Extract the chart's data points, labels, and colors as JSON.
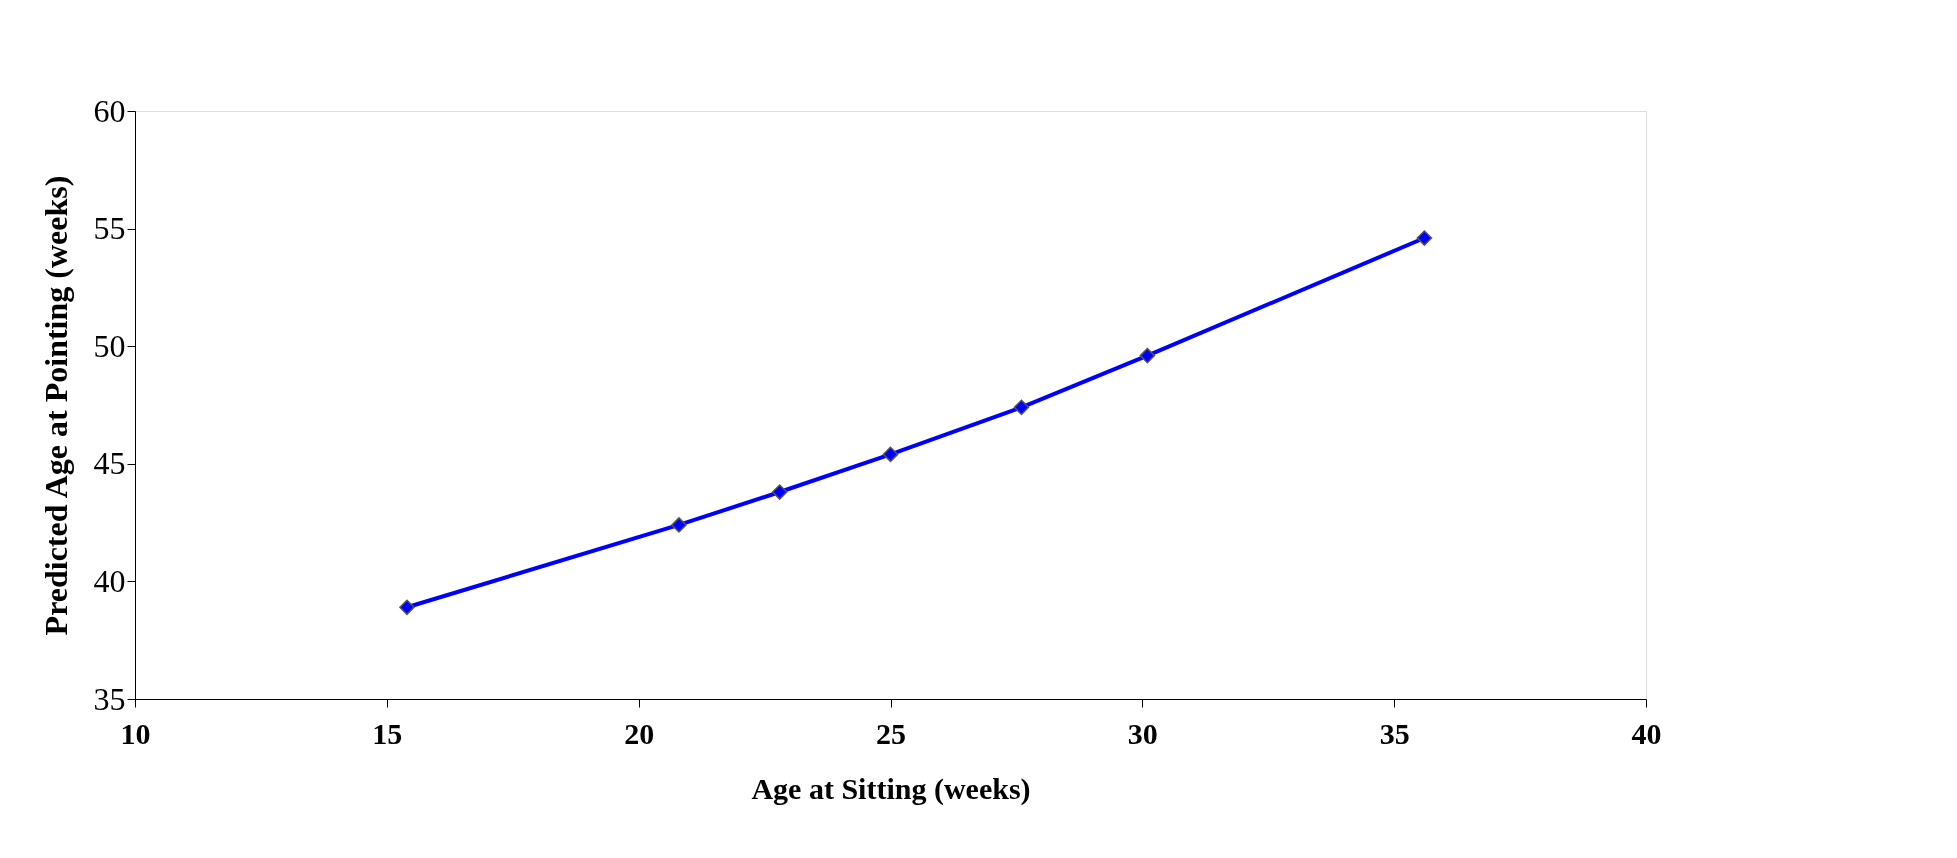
{
  "chart_data": {
    "type": "line",
    "xlabel": "Age at Sitting (weeks)",
    "ylabel": "Predicted Age at Pointing (weeks)",
    "x": [
      15.4,
      20.8,
      22.8,
      25.0,
      27.6,
      30.1,
      35.6
    ],
    "series": [
      {
        "color": "#0000ff",
        "values": [
          38.9,
          42.4,
          43.8,
          45.4,
          47.4,
          49.6,
          54.6
        ]
      }
    ],
    "xlim": [
      10,
      40
    ],
    "xticks": [
      10,
      15,
      20,
      25,
      30,
      35,
      40
    ],
    "ylim": [
      35,
      60
    ],
    "yticks": [
      35,
      40,
      45,
      50,
      55,
      60
    ],
    "marker": "diamond",
    "line_style": "solid",
    "grid": false
  }
}
